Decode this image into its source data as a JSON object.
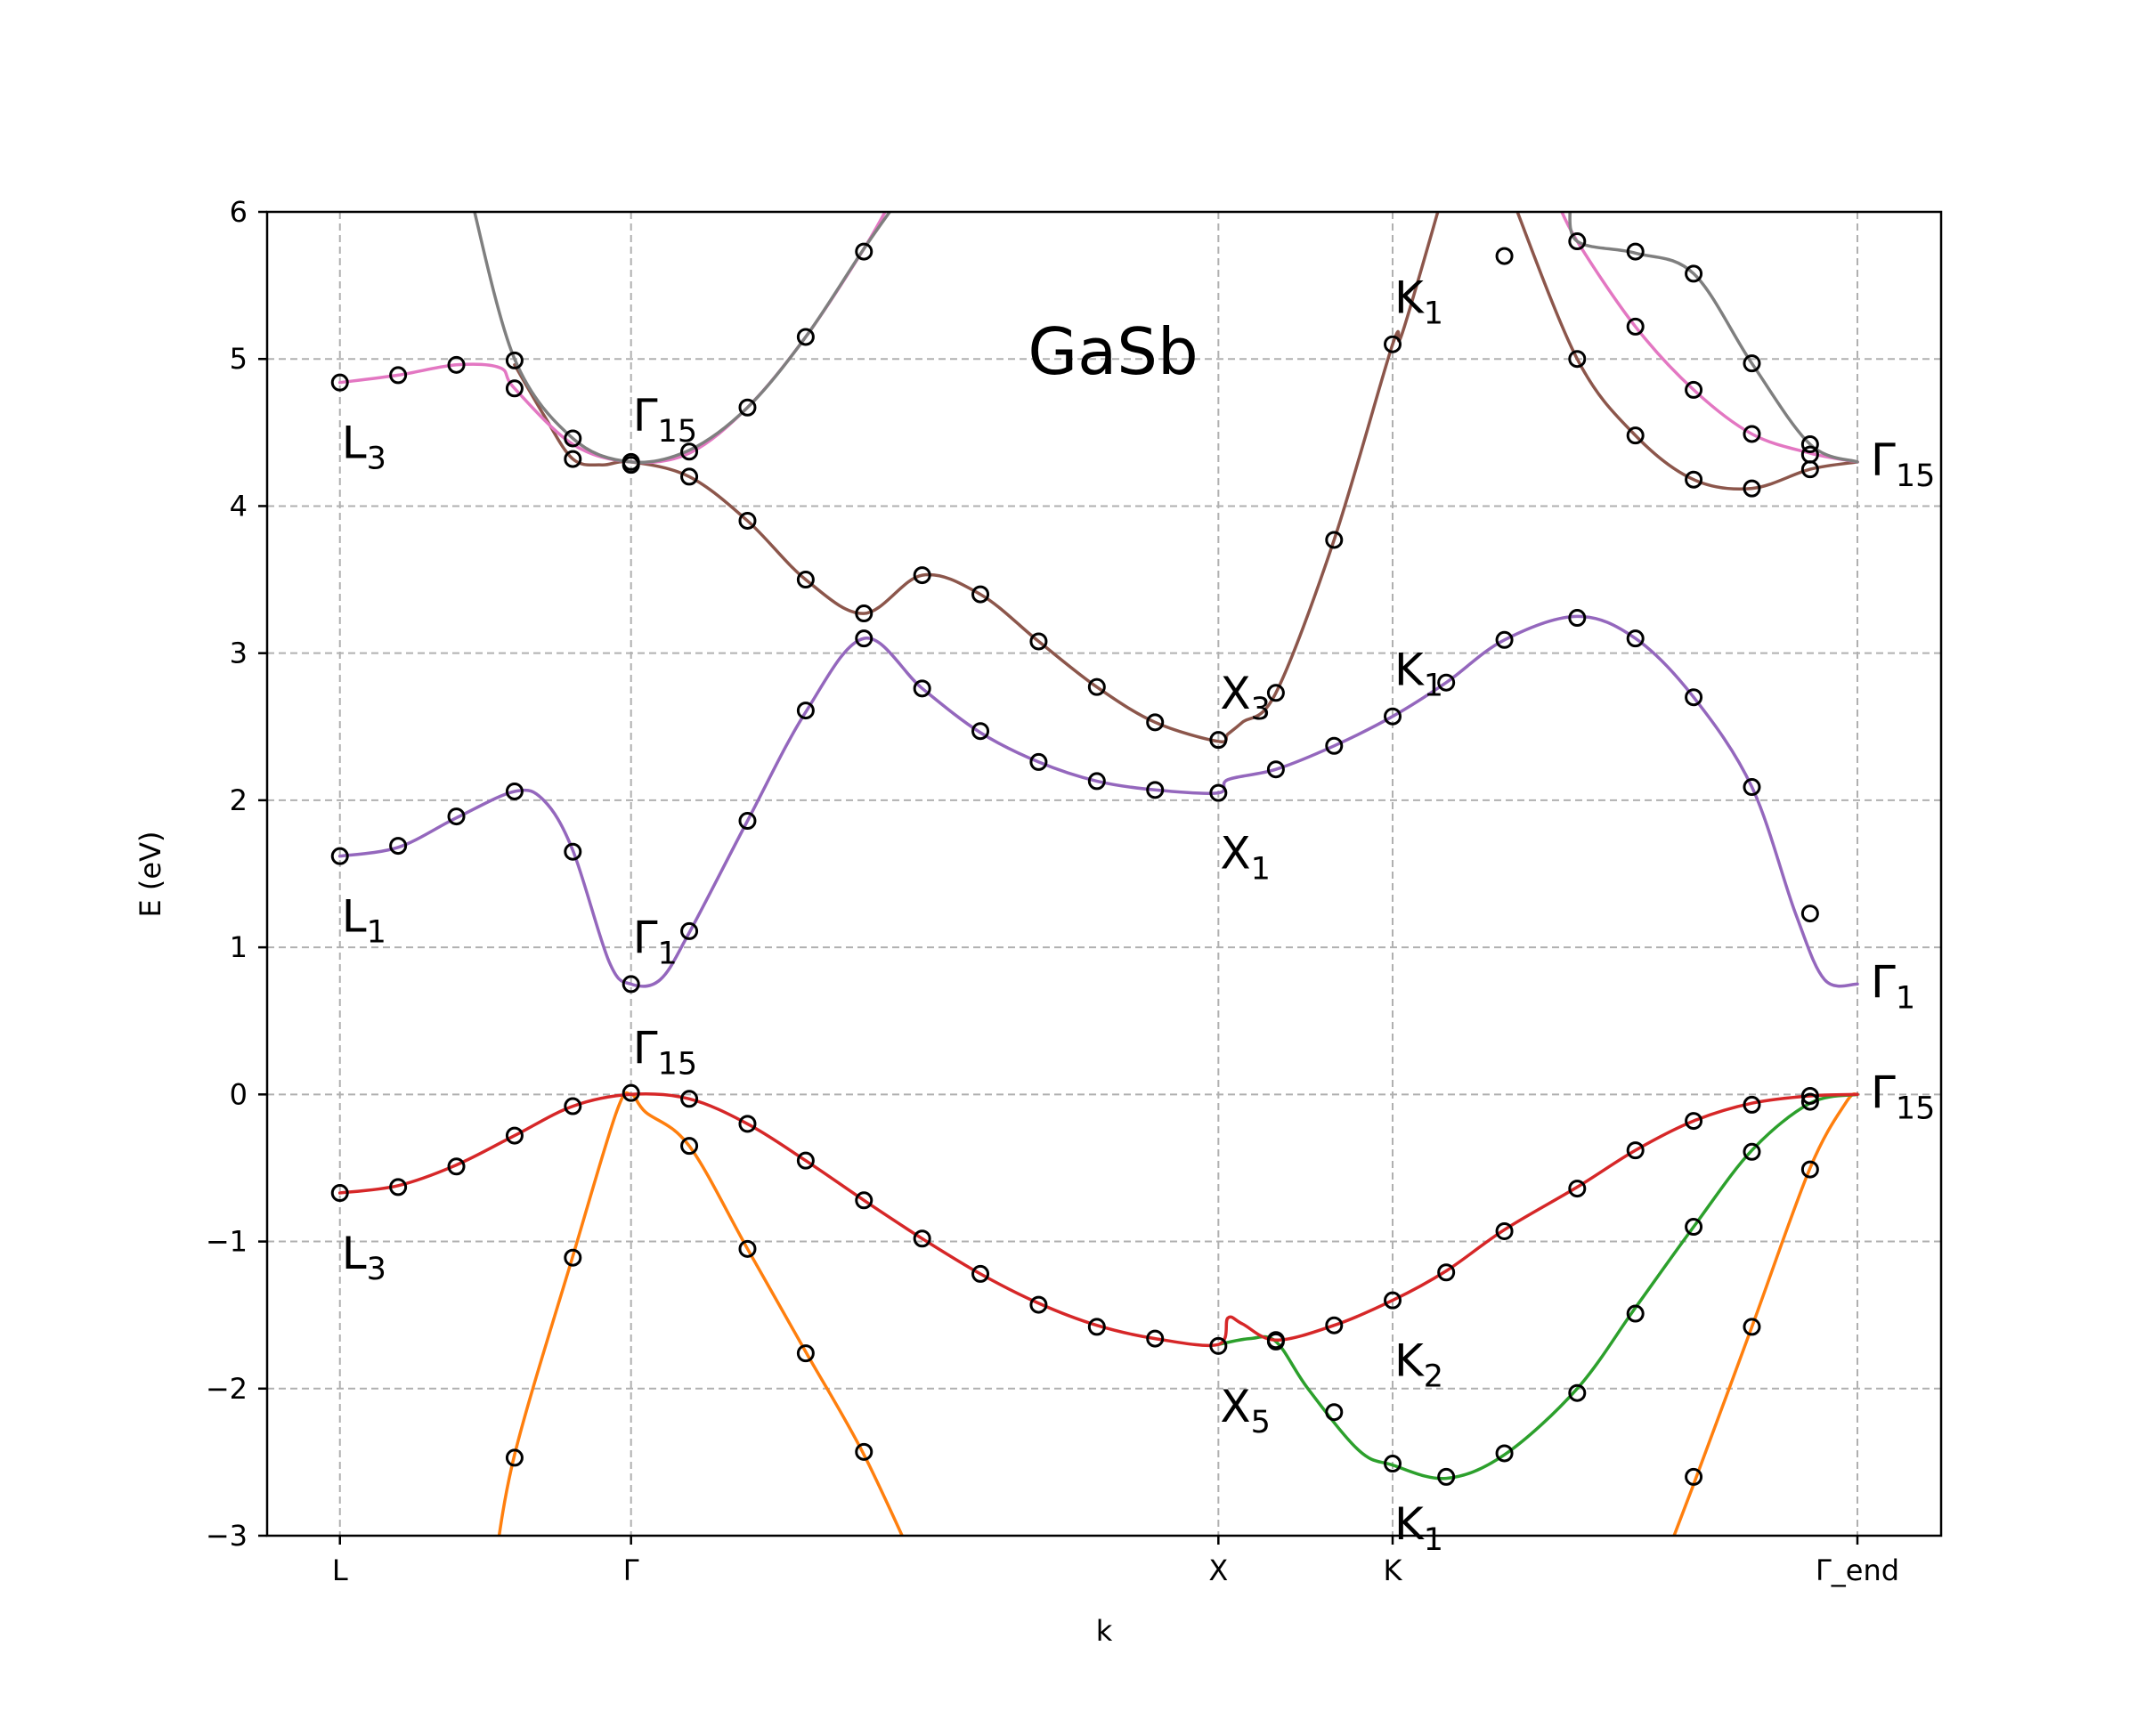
{
  "chart_data": {
    "type": "line",
    "title": "GaSb",
    "xlabel": "k",
    "ylabel": "E (eV)",
    "ylim": [
      -3,
      6
    ],
    "xlim": [
      -0.05,
      1.1
    ],
    "grid": true,
    "x_ticks": [
      {
        "pos": 0.0,
        "label": "L"
      },
      {
        "pos": 0.2,
        "label": "Γ"
      },
      {
        "pos": 0.6035,
        "label": "X"
      },
      {
        "pos": 0.7232,
        "label": "K"
      },
      {
        "pos": 1.0425,
        "label": "Γ_end"
      }
    ],
    "y_ticks": [
      {
        "value": 6,
        "label": "6"
      },
      {
        "value": 5,
        "label": "5"
      },
      {
        "value": 4,
        "label": "4"
      },
      {
        "value": 3,
        "label": "3"
      },
      {
        "value": 2,
        "label": "2"
      },
      {
        "value": 1,
        "label": "1"
      },
      {
        "value": 0,
        "label": "0"
      },
      {
        "value": -1,
        "label": "−1"
      },
      {
        "value": -2,
        "label": "−2"
      },
      {
        "value": -3,
        "label": "−3"
      }
    ],
    "series": [
      {
        "color": "#ff7f0e",
        "points": [
          [
            0.105,
            -3.3
          ],
          [
            0.12,
            -2.45
          ],
          [
            0.16,
            -1.1
          ],
          [
            0.19,
            -0.12
          ],
          [
            0.2,
            0.0
          ],
          [
            0.21,
            -0.12
          ],
          [
            0.24,
            -0.35
          ],
          [
            0.28,
            -1.05
          ],
          [
            0.32,
            -1.75
          ],
          [
            0.36,
            -2.45
          ],
          [
            0.4,
            -3.3
          ]
        ]
      },
      {
        "color": "#ff7f0e",
        "points": [
          [
            0.905,
            -3.3
          ],
          [
            0.93,
            -2.65
          ],
          [
            0.97,
            -1.58
          ],
          [
            1.01,
            -0.5
          ],
          [
            1.035,
            -0.05
          ],
          [
            1.0425,
            0.0
          ]
        ]
      },
      {
        "color": "#2ca02c",
        "points": [
          [
            0.6035,
            -1.7
          ],
          [
            0.625,
            -1.66
          ],
          [
            0.643,
            -1.68
          ],
          [
            0.665,
            -2.0
          ],
          [
            0.7,
            -2.42
          ],
          [
            0.7232,
            -2.52
          ],
          [
            0.76,
            -2.61
          ],
          [
            0.8,
            -2.45
          ],
          [
            0.85,
            -2.0
          ],
          [
            0.89,
            -1.45
          ],
          [
            0.93,
            -0.9
          ],
          [
            0.97,
            -0.38
          ],
          [
            1.01,
            -0.06
          ],
          [
            1.0425,
            0.0
          ]
        ]
      },
      {
        "color": "#d62728",
        "points": [
          [
            0.0,
            -0.67
          ],
          [
            0.04,
            -0.62
          ],
          [
            0.08,
            -0.48
          ],
          [
            0.12,
            -0.28
          ],
          [
            0.16,
            -0.08
          ],
          [
            0.2,
            0.0
          ],
          [
            0.24,
            -0.03
          ],
          [
            0.28,
            -0.2
          ],
          [
            0.32,
            -0.45
          ],
          [
            0.36,
            -0.72
          ],
          [
            0.4,
            -0.98
          ],
          [
            0.44,
            -1.22
          ],
          [
            0.48,
            -1.42
          ],
          [
            0.52,
            -1.57
          ],
          [
            0.56,
            -1.66
          ],
          [
            0.6035,
            -1.7
          ],
          [
            0.61,
            -1.52
          ],
          [
            0.62,
            -1.56
          ],
          [
            0.643,
            -1.67
          ],
          [
            0.683,
            -1.57
          ],
          [
            0.7232,
            -1.4
          ],
          [
            0.76,
            -1.2
          ],
          [
            0.8,
            -0.92
          ],
          [
            0.85,
            -0.63
          ],
          [
            0.89,
            -0.38
          ],
          [
            0.93,
            -0.18
          ],
          [
            0.97,
            -0.06
          ],
          [
            1.01,
            -0.01
          ],
          [
            1.0425,
            0.0
          ]
        ]
      },
      {
        "color": "#9467bd",
        "points": [
          [
            0.0,
            1.62
          ],
          [
            0.04,
            1.68
          ],
          [
            0.08,
            1.88
          ],
          [
            0.12,
            2.06
          ],
          [
            0.14,
            2.0
          ],
          [
            0.16,
            1.66
          ],
          [
            0.185,
            0.9
          ],
          [
            0.2,
            0.75
          ],
          [
            0.22,
            0.78
          ],
          [
            0.24,
            1.1
          ],
          [
            0.28,
            1.86
          ],
          [
            0.32,
            2.6
          ],
          [
            0.36,
            3.1
          ],
          [
            0.4,
            2.76
          ],
          [
            0.44,
            2.46
          ],
          [
            0.48,
            2.26
          ],
          [
            0.52,
            2.13
          ],
          [
            0.56,
            2.07
          ],
          [
            0.6035,
            2.05
          ],
          [
            0.61,
            2.14
          ],
          [
            0.643,
            2.21
          ],
          [
            0.683,
            2.37
          ],
          [
            0.7232,
            2.57
          ],
          [
            0.76,
            2.8
          ],
          [
            0.8,
            3.09
          ],
          [
            0.85,
            3.25
          ],
          [
            0.89,
            3.1
          ],
          [
            0.93,
            2.7
          ],
          [
            0.97,
            2.09
          ],
          [
            1.0,
            1.23
          ],
          [
            1.02,
            0.78
          ],
          [
            1.0425,
            0.75
          ]
        ]
      },
      {
        "color": "#8c564b",
        "points": [
          [
            0.12,
            4.96
          ],
          [
            0.14,
            4.62
          ],
          [
            0.16,
            4.32
          ],
          [
            0.18,
            4.28
          ],
          [
            0.2,
            4.3
          ],
          [
            0.24,
            4.2
          ],
          [
            0.28,
            3.9
          ],
          [
            0.32,
            3.5
          ],
          [
            0.36,
            3.27
          ],
          [
            0.4,
            3.53
          ],
          [
            0.44,
            3.4
          ],
          [
            0.48,
            3.08
          ],
          [
            0.52,
            2.77
          ],
          [
            0.56,
            2.53
          ],
          [
            0.6035,
            2.4
          ],
          [
            0.61,
            2.45
          ],
          [
            0.62,
            2.53
          ],
          [
            0.643,
            2.73
          ],
          [
            0.683,
            3.77
          ],
          [
            0.7232,
            5.1
          ],
          [
            0.73,
            5.18
          ],
          [
            0.76,
            6.2
          ]
        ]
      },
      {
        "color": "#8c564b",
        "points": [
          [
            0.805,
            6.1
          ],
          [
            0.85,
            5.0
          ],
          [
            0.89,
            4.48
          ],
          [
            0.93,
            4.18
          ],
          [
            0.97,
            4.12
          ],
          [
            1.01,
            4.25
          ],
          [
            1.0425,
            4.3
          ]
        ]
      },
      {
        "color": "#e377c2",
        "points": [
          [
            0.0,
            4.84
          ],
          [
            0.04,
            4.89
          ],
          [
            0.08,
            4.96
          ],
          [
            0.11,
            4.94
          ],
          [
            0.12,
            4.8
          ],
          [
            0.16,
            4.42
          ],
          [
            0.2,
            4.3
          ],
          [
            0.24,
            4.36
          ],
          [
            0.28,
            4.67
          ],
          [
            0.32,
            5.15
          ],
          [
            0.36,
            5.75
          ],
          [
            0.38,
            6.1
          ]
        ]
      },
      {
        "color": "#e377c2",
        "points": [
          [
            0.835,
            6.1
          ],
          [
            0.85,
            5.8
          ],
          [
            0.89,
            5.22
          ],
          [
            0.93,
            4.79
          ],
          [
            0.97,
            4.49
          ],
          [
            1.01,
            4.36
          ],
          [
            1.0425,
            4.3
          ]
        ]
      },
      {
        "color": "#7f7f7f",
        "points": [
          [
            0.09,
            6.1
          ],
          [
            0.12,
            5.0
          ],
          [
            0.16,
            4.46
          ],
          [
            0.2,
            4.3
          ],
          [
            0.24,
            4.38
          ],
          [
            0.28,
            4.67
          ],
          [
            0.32,
            5.15
          ],
          [
            0.36,
            5.75
          ],
          [
            0.385,
            6.1
          ]
        ]
      },
      {
        "color": "#7f7f7f",
        "points": [
          [
            0.845,
            6.05
          ],
          [
            0.85,
            5.8
          ],
          [
            0.89,
            5.72
          ],
          [
            0.93,
            5.58
          ],
          [
            0.97,
            4.97
          ],
          [
            1.01,
            4.42
          ],
          [
            1.0425,
            4.3
          ]
        ]
      }
    ],
    "markers": [
      [
        0.0,
        4.84
      ],
      [
        0.04,
        4.89
      ],
      [
        0.08,
        4.96
      ],
      [
        0.12,
        4.99
      ],
      [
        0.12,
        4.8
      ],
      [
        0.16,
        4.46
      ],
      [
        0.16,
        4.32
      ],
      [
        0.2,
        4.3
      ],
      [
        0.2,
        4.28
      ],
      [
        0.24,
        4.37
      ],
      [
        0.24,
        4.2
      ],
      [
        0.28,
        4.67
      ],
      [
        0.28,
        3.9
      ],
      [
        0.32,
        5.15
      ],
      [
        0.32,
        3.5
      ],
      [
        0.36,
        5.73
      ],
      [
        0.36,
        3.27
      ],
      [
        0.4,
        3.53
      ],
      [
        0.44,
        3.4
      ],
      [
        0.48,
        3.08
      ],
      [
        0.52,
        2.77
      ],
      [
        0.56,
        2.53
      ],
      [
        0.6035,
        2.41
      ],
      [
        0.643,
        2.73
      ],
      [
        0.683,
        3.77
      ],
      [
        0.7232,
        5.1
      ],
      [
        0.8,
        5.7
      ],
      [
        0.85,
        5.8
      ],
      [
        0.85,
        5.0
      ],
      [
        0.89,
        5.73
      ],
      [
        0.89,
        5.22
      ],
      [
        0.89,
        4.48
      ],
      [
        0.93,
        5.58
      ],
      [
        0.93,
        4.79
      ],
      [
        0.93,
        4.18
      ],
      [
        0.97,
        4.97
      ],
      [
        0.97,
        4.49
      ],
      [
        0.97,
        4.12
      ],
      [
        1.01,
        4.42
      ],
      [
        1.01,
        4.35
      ],
      [
        1.01,
        4.25
      ],
      [
        0.0,
        1.62
      ],
      [
        0.04,
        1.69
      ],
      [
        0.08,
        1.89
      ],
      [
        0.12,
        2.06
      ],
      [
        0.16,
        1.65
      ],
      [
        0.2,
        0.75
      ],
      [
        0.24,
        1.11
      ],
      [
        0.28,
        1.86
      ],
      [
        0.32,
        2.61
      ],
      [
        0.36,
        3.1
      ],
      [
        0.4,
        2.76
      ],
      [
        0.44,
        2.47
      ],
      [
        0.48,
        2.26
      ],
      [
        0.52,
        2.13
      ],
      [
        0.56,
        2.07
      ],
      [
        0.6035,
        2.05
      ],
      [
        0.643,
        2.21
      ],
      [
        0.683,
        2.37
      ],
      [
        0.7232,
        2.57
      ],
      [
        0.76,
        2.8
      ],
      [
        0.8,
        3.09
      ],
      [
        0.85,
        3.24
      ],
      [
        0.89,
        3.1
      ],
      [
        0.93,
        2.7
      ],
      [
        0.97,
        2.09
      ],
      [
        1.01,
        1.23
      ],
      [
        0.0,
        -0.67
      ],
      [
        0.04,
        -0.63
      ],
      [
        0.08,
        -0.49
      ],
      [
        0.12,
        -0.28
      ],
      [
        0.16,
        -0.08
      ],
      [
        0.2,
        0.01
      ],
      [
        0.24,
        -0.03
      ],
      [
        0.28,
        -0.2
      ],
      [
        0.32,
        -0.45
      ],
      [
        0.36,
        -0.72
      ],
      [
        0.4,
        -0.98
      ],
      [
        0.44,
        -1.22
      ],
      [
        0.48,
        -1.43
      ],
      [
        0.52,
        -1.58
      ],
      [
        0.56,
        -1.66
      ],
      [
        0.6035,
        -1.71
      ],
      [
        0.643,
        -1.67
      ],
      [
        0.683,
        -1.57
      ],
      [
        0.7232,
        -1.4
      ],
      [
        0.76,
        -1.21
      ],
      [
        0.8,
        -0.93
      ],
      [
        0.85,
        -0.64
      ],
      [
        0.89,
        -0.38
      ],
      [
        0.93,
        -0.18
      ],
      [
        0.97,
        -0.07
      ],
      [
        1.01,
        -0.01
      ],
      [
        0.12,
        -2.47
      ],
      [
        0.16,
        -1.11
      ],
      [
        0.24,
        -0.35
      ],
      [
        0.28,
        -1.05
      ],
      [
        0.32,
        -1.76
      ],
      [
        0.36,
        -2.43
      ],
      [
        0.643,
        -1.68
      ],
      [
        0.683,
        -2.16
      ],
      [
        0.7232,
        -2.51
      ],
      [
        0.76,
        -2.6
      ],
      [
        0.8,
        -2.44
      ],
      [
        0.85,
        -2.03
      ],
      [
        0.89,
        -1.49
      ],
      [
        0.93,
        -0.9
      ],
      [
        0.97,
        -0.39
      ],
      [
        1.01,
        -0.05
      ],
      [
        1.01,
        -0.51
      ],
      [
        0.97,
        -1.58
      ],
      [
        0.93,
        -2.6
      ]
    ],
    "labels": [
      {
        "x": 0.0,
        "y": 4.84,
        "base": "L",
        "sub": "3",
        "anchor": "below"
      },
      {
        "x": 0.2,
        "y": 4.3,
        "base": "Γ",
        "sub": "15",
        "anchor": "above"
      },
      {
        "x": 0.0,
        "y": 1.62,
        "base": "L",
        "sub": "1",
        "anchor": "below"
      },
      {
        "x": 0.2,
        "y": 0.75,
        "base": "Γ",
        "sub": "1",
        "anchor": "above"
      },
      {
        "x": 0.2,
        "y": 0.0,
        "base": "Γ",
        "sub": "15",
        "anchor": "above"
      },
      {
        "x": 0.0,
        "y": -0.67,
        "base": "L",
        "sub": "3",
        "anchor": "below"
      },
      {
        "x": 0.6035,
        "y": 2.41,
        "base": "X",
        "sub": "3",
        "anchor": "above"
      },
      {
        "x": 0.6035,
        "y": 2.05,
        "base": "X",
        "sub": "1",
        "anchor": "below"
      },
      {
        "x": 0.6035,
        "y": -1.71,
        "base": "X",
        "sub": "5",
        "anchor": "below"
      },
      {
        "x": 0.7232,
        "y": 5.1,
        "base": "K",
        "sub": "1",
        "anchor": "above"
      },
      {
        "x": 0.7232,
        "y": 2.57,
        "base": "K",
        "sub": "1",
        "anchor": "above"
      },
      {
        "x": 0.7232,
        "y": -1.4,
        "base": "K",
        "sub": "2",
        "anchor": "below"
      },
      {
        "x": 0.7232,
        "y": -2.51,
        "base": "K",
        "sub": "1",
        "anchor": "below"
      },
      {
        "x": 1.0425,
        "y": 4.3,
        "base": "Γ",
        "sub": "15",
        "anchor": "right"
      },
      {
        "x": 1.0425,
        "y": 0.75,
        "base": "Γ",
        "sub": "1",
        "anchor": "right"
      },
      {
        "x": 1.0425,
        "y": 0.0,
        "base": "Γ",
        "sub": "15",
        "anchor": "right"
      }
    ]
  }
}
